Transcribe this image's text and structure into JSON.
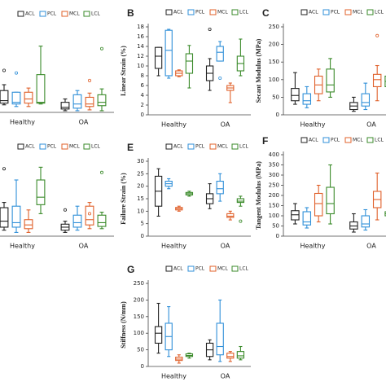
{
  "chart_data": [
    {
      "type": "box",
      "categories": [
        "Healthy",
        "OA"
      ],
      "ylim": [
        0,
        100
      ],
      "series": [
        {
          "name": "ACL",
          "color": "#222222",
          "boxes": [
            {
              "min": 9,
              "q1": 11,
              "median": 14,
              "q3": 26,
              "max": 33,
              "outliers": [
                50
              ]
            },
            {
              "min": 2,
              "q1": 4,
              "median": 6,
              "q3": 12,
              "max": 16
            }
          ]
        },
        {
          "name": "PCL",
          "color": "#2f8fd8",
          "boxes": [
            {
              "min": 7,
              "q1": 10,
              "median": 12,
              "q3": 24,
              "max": 24,
              "outliers": [
                47
              ]
            },
            {
              "min": 2,
              "q1": 5,
              "median": 10,
              "q3": 21,
              "max": 26
            }
          ]
        },
        {
          "name": "MCL",
          "color": "#e0602a",
          "boxes": [
            {
              "min": 7,
              "q1": 11,
              "median": 16,
              "q3": 24,
              "max": 29
            },
            {
              "min": 3,
              "q1": 7,
              "median": 10,
              "q3": 18,
              "max": 23,
              "outliers": [
                38
              ]
            }
          ]
        },
        {
          "name": "LCL",
          "color": "#3a8a2a",
          "boxes": [
            {
              "min": 10,
              "q1": 11,
              "median": 12,
              "q3": 45,
              "max": 79
            },
            {
              "min": 2,
              "q1": 8,
              "median": 12,
              "q3": 21,
              "max": 28,
              "outliers": [
                76
              ]
            }
          ]
        }
      ]
    },
    {
      "type": "box",
      "panel": "B",
      "ylabel": "Linear Strain (%)",
      "categories": [
        "Healthy",
        "OA"
      ],
      "ylim": [
        0,
        18
      ],
      "yticks": [
        0,
        2,
        4,
        6,
        8,
        10,
        12,
        14,
        16,
        18
      ],
      "series": [
        {
          "name": "ACL",
          "color": "#222222",
          "boxes": [
            {
              "min": 8,
              "q1": 9.5,
              "median": 12,
              "q3": 13.8,
              "max": 13.8
            },
            {
              "min": 5,
              "q1": 7,
              "median": 8.5,
              "q3": 10,
              "max": 11.5,
              "outliers": [
                17.5
              ]
            }
          ]
        },
        {
          "name": "PCL",
          "color": "#2f8fd8",
          "boxes": [
            {
              "min": 7.5,
              "q1": 8,
              "median": 13.2,
              "q3": 17.3,
              "max": 17.5
            },
            {
              "min": 11,
              "q1": 11,
              "median": 12.8,
              "q3": 14,
              "max": 15,
              "outliers": [
                7.5
              ]
            }
          ]
        },
        {
          "name": "MCL",
          "color": "#e0602a",
          "boxes": [
            {
              "min": 7.8,
              "q1": 8,
              "median": 8.5,
              "q3": 9,
              "max": 9.2
            },
            {
              "min": 2.5,
              "q1": 5,
              "median": 5.5,
              "q3": 6,
              "max": 6.5
            }
          ]
        },
        {
          "name": "LCL",
          "color": "#3a8a2a",
          "boxes": [
            {
              "min": 5.5,
              "q1": 8.5,
              "median": 11,
              "q3": 12.5,
              "max": 14.2
            },
            {
              "min": 8,
              "q1": 9,
              "median": 10.5,
              "q3": 12,
              "max": 15.5
            }
          ]
        }
      ]
    },
    {
      "type": "box",
      "panel": "C",
      "ylabel": "Secant Modulus (MPa)",
      "categories": [
        "Healthy",
        "OA"
      ],
      "ylim": [
        0,
        250
      ],
      "yticks": [
        0,
        50,
        100,
        150,
        200,
        250
      ],
      "series": [
        {
          "name": "ACL",
          "color": "#222222",
          "boxes": [
            {
              "min": 30,
              "q1": 40,
              "median": 55,
              "q3": 75,
              "max": 120
            },
            {
              "min": 10,
              "q1": 15,
              "median": 25,
              "q3": 35,
              "max": 50
            }
          ]
        },
        {
          "name": "PCL",
          "color": "#2f8fd8",
          "boxes": [
            {
              "min": 20,
              "q1": 30,
              "median": 40,
              "q3": 60,
              "max": 80
            },
            {
              "min": 15,
              "q1": 25,
              "median": 35,
              "q3": 60,
              "max": 90
            }
          ]
        },
        {
          "name": "MCL",
          "color": "#e0602a",
          "boxes": [
            {
              "min": 40,
              "q1": 60,
              "median": 85,
              "q3": 110,
              "max": 130
            },
            {
              "min": 40,
              "q1": 80,
              "median": 100,
              "q3": 115,
              "max": 140,
              "outliers": [
                225
              ]
            }
          ]
        },
        {
          "name": "LCL",
          "color": "#3a8a2a",
          "boxes": [
            {
              "min": 50,
              "q1": 65,
              "median": 85,
              "q3": 130,
              "max": 160
            },
            {
              "min": 60,
              "q1": 80,
              "median": 95,
              "q3": 110,
              "max": 130
            }
          ]
        }
      ]
    },
    {
      "type": "box",
      "categories": [
        "Healthy",
        "OA"
      ],
      "ylim": [
        0,
        100
      ],
      "series": [
        {
          "name": "ACL",
          "color": "#222222",
          "boxes": [
            {
              "min": 8,
              "q1": 12,
              "median": 20,
              "q3": 38,
              "max": 45,
              "outliers": [
                90
              ]
            },
            {
              "min": 5,
              "q1": 8,
              "median": 12,
              "q3": 16,
              "max": 20,
              "outliers": [
                35
              ]
            }
          ]
        },
        {
          "name": "PCL",
          "color": "#2f8fd8",
          "boxes": [
            {
              "min": 5,
              "q1": 12,
              "median": 18,
              "q3": 40,
              "max": 75
            },
            {
              "min": 8,
              "q1": 12,
              "median": 18,
              "q3": 28,
              "max": 40
            }
          ]
        },
        {
          "name": "MCL",
          "color": "#e0602a",
          "boxes": [
            {
              "min": 5,
              "q1": 10,
              "median": 15,
              "q3": 22,
              "max": 35
            },
            {
              "min": 10,
              "q1": 15,
              "median": 22,
              "q3": 40,
              "max": 45,
              "outliers": [
                30
              ]
            }
          ]
        },
        {
          "name": "LCL",
          "color": "#3a8a2a",
          "boxes": [
            {
              "min": 30,
              "q1": 42,
              "median": 52,
              "q3": 75,
              "max": 92
            },
            {
              "min": 10,
              "q1": 13,
              "median": 18,
              "q3": 28,
              "max": 32,
              "outliers": [
                85
              ]
            }
          ]
        }
      ]
    },
    {
      "type": "box",
      "panel": "E",
      "ylabel": "Failure Strain (%)",
      "categories": [
        "Healthy",
        "OA"
      ],
      "ylim": [
        0,
        30
      ],
      "yticks": [
        0,
        5,
        10,
        15,
        20,
        25,
        30
      ],
      "series": [
        {
          "name": "ACL",
          "color": "#222222",
          "boxes": [
            {
              "min": 8,
              "q1": 12,
              "median": 18,
              "q3": 24,
              "max": 27
            },
            {
              "min": 11,
              "q1": 13,
              "median": 15,
              "q3": 17,
              "max": 21
            }
          ]
        },
        {
          "name": "PCL",
          "color": "#2f8fd8",
          "boxes": [
            {
              "min": 19,
              "q1": 20,
              "median": 21,
              "q3": 22,
              "max": 23
            },
            {
              "min": 14,
              "q1": 17,
              "median": 19,
              "q3": 22,
              "max": 25
            }
          ]
        },
        {
          "name": "MCL",
          "color": "#e0602a",
          "boxes": [
            {
              "min": 10,
              "q1": 10.5,
              "median": 11,
              "q3": 11.5,
              "max": 12
            },
            {
              "min": 6.5,
              "q1": 7.5,
              "median": 8,
              "q3": 9,
              "max": 10
            }
          ]
        },
        {
          "name": "LCL",
          "color": "#3a8a2a",
          "boxes": [
            {
              "min": 16,
              "q1": 16.5,
              "median": 17,
              "q3": 17.5,
              "max": 18
            },
            {
              "min": 12,
              "q1": 13.5,
              "median": 14,
              "q3": 15,
              "max": 16,
              "outliers": [
                6
              ]
            }
          ]
        }
      ]
    },
    {
      "type": "box",
      "panel": "F",
      "ylabel": "Tangent Modulus (MPa)",
      "categories": [
        "Healthy",
        "OA"
      ],
      "ylim": [
        0,
        400
      ],
      "yticks": [
        0,
        50,
        100,
        150,
        200,
        250,
        300,
        350,
        400
      ],
      "series": [
        {
          "name": "ACL",
          "color": "#222222",
          "boxes": [
            {
              "min": 60,
              "q1": 80,
              "median": 105,
              "q3": 125,
              "max": 160
            },
            {
              "min": 20,
              "q1": 35,
              "median": 50,
              "q3": 70,
              "max": 110
            }
          ]
        },
        {
          "name": "PCL",
          "color": "#2f8fd8",
          "boxes": [
            {
              "min": 40,
              "q1": 55,
              "median": 70,
              "q3": 120,
              "max": 140
            },
            {
              "min": 30,
              "q1": 45,
              "median": 60,
              "q3": 100,
              "max": 130
            }
          ]
        },
        {
          "name": "MCL",
          "color": "#e0602a",
          "boxes": [
            {
              "min": 70,
              "q1": 100,
              "median": 160,
              "q3": 210,
              "max": 250
            },
            {
              "min": 80,
              "q1": 140,
              "median": 180,
              "q3": 220,
              "max": 310
            }
          ]
        },
        {
          "name": "LCL",
          "color": "#3a8a2a",
          "boxes": [
            {
              "min": 60,
              "q1": 110,
              "median": 160,
              "q3": 240,
              "max": 350
            },
            {
              "min": 90,
              "q1": 100,
              "median": 110,
              "q3": 120,
              "max": 130
            }
          ]
        }
      ]
    },
    {
      "type": "box",
      "panel": "G",
      "ylabel": "Stiffness (N/mm)",
      "categories": [
        "Healthy",
        "OA"
      ],
      "ylim": [
        0,
        250
      ],
      "yticks": [
        0,
        50,
        100,
        150,
        200,
        250
      ],
      "series": [
        {
          "name": "ACL",
          "color": "#222222",
          "boxes": [
            {
              "min": 40,
              "q1": 70,
              "median": 100,
              "q3": 120,
              "max": 190
            },
            {
              "min": 20,
              "q1": 30,
              "median": 50,
              "q3": 70,
              "max": 80
            }
          ]
        },
        {
          "name": "PCL",
          "color": "#2f8fd8",
          "boxes": [
            {
              "min": 30,
              "q1": 50,
              "median": 90,
              "q3": 130,
              "max": 180
            },
            {
              "min": 15,
              "q1": 35,
              "median": 60,
              "q3": 130,
              "max": 200
            }
          ]
        },
        {
          "name": "MCL",
          "color": "#e0602a",
          "boxes": [
            {
              "min": 10,
              "q1": 18,
              "median": 22,
              "q3": 28,
              "max": 35
            },
            {
              "min": 15,
              "q1": 25,
              "median": 30,
              "q3": 40,
              "max": 45
            }
          ]
        },
        {
          "name": "LCL",
          "color": "#3a8a2a",
          "boxes": [
            {
              "min": 25,
              "q1": 30,
              "median": 33,
              "q3": 38,
              "max": 40
            },
            {
              "min": 20,
              "q1": 25,
              "median": 32,
              "q3": 45,
              "max": 60
            }
          ]
        }
      ]
    }
  ]
}
